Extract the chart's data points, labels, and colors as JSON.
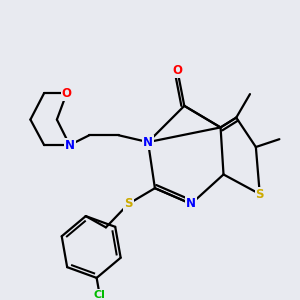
{
  "bg_color": "#e8eaf0",
  "bond_color": "#000000",
  "bond_width": 1.6,
  "atom_colors": {
    "N": "#0000ff",
    "O": "#ff0000",
    "S": "#ccaa00",
    "Cl": "#00bb00",
    "C": "#000000"
  },
  "font_size_atom": 8.5
}
